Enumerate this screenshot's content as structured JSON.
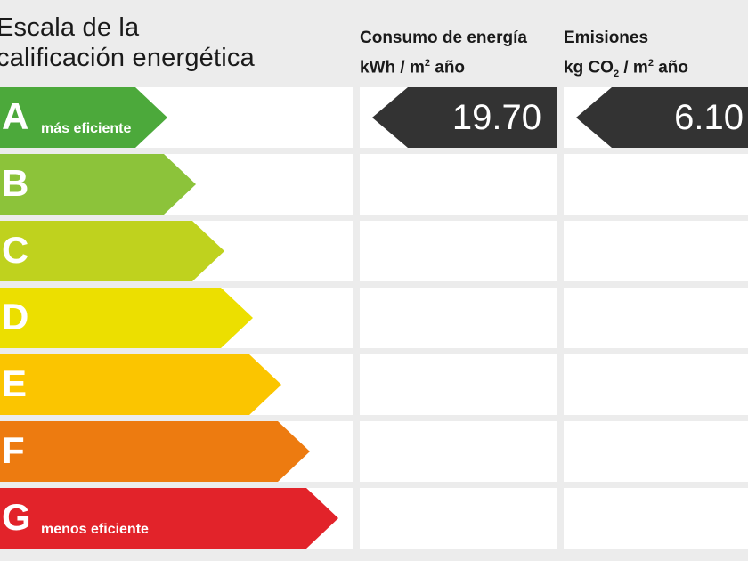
{
  "scale_title_line1": "Escala de la",
  "scale_title_line2": "calificación energética",
  "consumo": {
    "title": "Consumo de energía",
    "unit_pre": "kWh / m",
    "unit_sup": "2",
    "unit_post": " año",
    "value": "19.70"
  },
  "emisiones": {
    "title": "Emisiones",
    "unit_pre": "kg CO",
    "unit_sub": "2",
    "unit_mid": " / m",
    "unit_sup": "2",
    "unit_post": " año",
    "value": "6.10"
  },
  "grades": [
    {
      "letter": "A",
      "sublabel": "más eficiente",
      "color": "#4ca93b"
    },
    {
      "letter": "B",
      "sublabel": "",
      "color": "#8cc33a"
    },
    {
      "letter": "C",
      "sublabel": "",
      "color": "#bfd21e"
    },
    {
      "letter": "D",
      "sublabel": "",
      "color": "#ecdf00"
    },
    {
      "letter": "E",
      "sublabel": "",
      "color": "#fbc500"
    },
    {
      "letter": "F",
      "sublabel": "",
      "color": "#ed7b10"
    },
    {
      "letter": "G",
      "sublabel": "menos eficiente",
      "color": "#e2232a"
    }
  ],
  "current_rating": "A",
  "indicator_color": "#333333"
}
